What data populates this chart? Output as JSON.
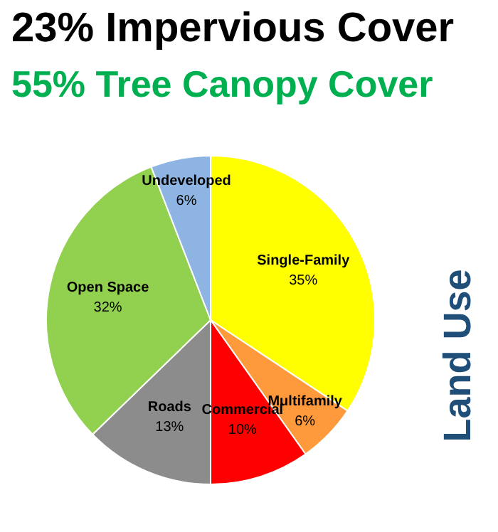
{
  "chart_data": {
    "type": "pie",
    "title": "23% Impervious Cover",
    "subtitle": "55% Tree Canopy Cover",
    "annotations": [
      "Land Use"
    ],
    "categories": [
      "Single-Family",
      "Multifamily",
      "Commercial",
      "Roads",
      "Open Space",
      "Undeveloped"
    ],
    "values": [
      35,
      6,
      10,
      13,
      32,
      6
    ],
    "value_labels": [
      "35%",
      "6%",
      "10%",
      "13%",
      "32%",
      "6%"
    ],
    "colors": [
      "#ffff00",
      "#ff9a3c",
      "#ff0000",
      "#8c8c8c",
      "#92d050",
      "#8db4e2"
    ]
  }
}
